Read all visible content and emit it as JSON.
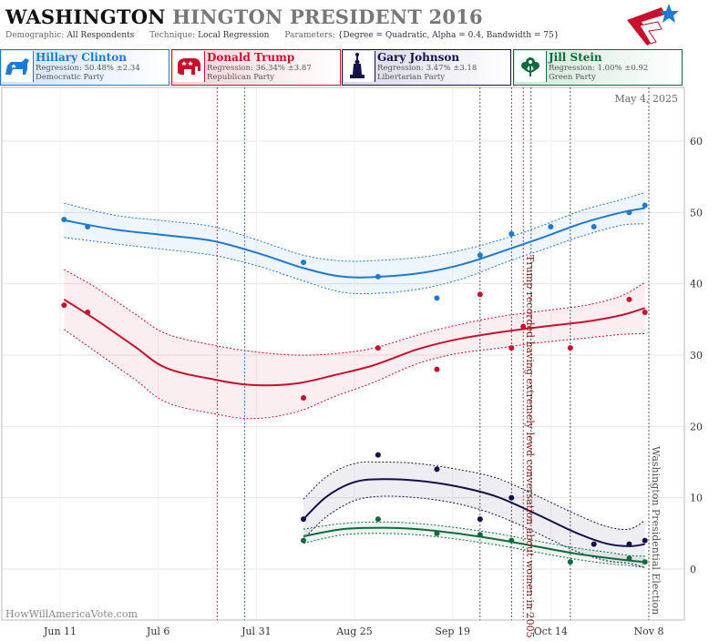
{
  "header": {
    "title_state": "WASHINGTON",
    "title_rest": "HINGTON PRESIDENT 2016",
    "demographic_label": "Demographic:",
    "demographic_value": "All Respondents",
    "technique_label": "Technique:",
    "technique_value": "Local Regression",
    "parameters_label": "Parameters:",
    "parameters_value": "{Degree = Quadratic, Alpha = 0.4, Bandwidth = 75}"
  },
  "candidates": [
    {
      "name": "Hillary Clinton",
      "regression": "Regression: 50.48% ±2.34",
      "party": "Democratic Party",
      "color": "#1f78d1",
      "icon": "donkey-icon"
    },
    {
      "name": "Donald Trump",
      "regression": "Regression: 36.34% ±3.87",
      "party": "Republican Party",
      "color": "#c8102e",
      "icon": "elephant-icon"
    },
    {
      "name": "Gary Johnson",
      "regression": "Regression: 3.47% ±3.18",
      "party": "Libertarian Party",
      "color": "#13104a",
      "icon": "statue-of-liberty-icon"
    },
    {
      "name": "Jill Stein",
      "regression": "Regression: 1.00% ±0.92",
      "party": "Green Party",
      "color": "#0e6a3c",
      "icon": "flower-icon"
    }
  ],
  "chart_data": {
    "type": "scatter",
    "date_label": "May 4, 2025",
    "watermark": "HowWillAmericaVote.com",
    "x_ticks": [
      {
        "date": "2016-06-11",
        "label": "Jun 11"
      },
      {
        "date": "2016-07-06",
        "label": "Jul 6"
      },
      {
        "date": "2016-07-31",
        "label": "Jul 31"
      },
      {
        "date": "2016-08-25",
        "label": "Aug 25"
      },
      {
        "date": "2016-09-19",
        "label": "Sep 19"
      },
      {
        "date": "2016-10-14",
        "label": "Oct 14"
      },
      {
        "date": "2016-11-08",
        "label": "Nov 8"
      }
    ],
    "y_ticks": [
      0,
      10,
      20,
      30,
      40,
      50,
      60
    ],
    "grid": true,
    "annotations": [
      {
        "date": "2016-10-07",
        "text": "Trump recorded having extremely lewd conversation about women in 2005",
        "color": "#8b1a1a"
      },
      {
        "date": "2016-11-08",
        "text": "Washington Presidential Election",
        "color": "#555555"
      }
    ],
    "event_lines": [
      {
        "date": "2016-07-21",
        "color": "#8b1a1a"
      },
      {
        "date": "2016-07-28",
        "color": "#1f5fa8"
      },
      {
        "date": "2016-09-26",
        "color": "#333333"
      },
      {
        "date": "2016-10-04",
        "color": "#333333"
      },
      {
        "date": "2016-10-07",
        "color": "#8b1a1a"
      },
      {
        "date": "2016-10-09",
        "color": "#333333"
      },
      {
        "date": "2016-10-19",
        "color": "#333333"
      },
      {
        "date": "2016-11-08",
        "color": "#333333"
      }
    ],
    "series": [
      {
        "name": "Hillary Clinton",
        "color": "#1f78d1",
        "points": [
          [
            "2016-06-12",
            49
          ],
          [
            "2016-06-18",
            48
          ],
          [
            "2016-08-12",
            43
          ],
          [
            "2016-08-31",
            41
          ],
          [
            "2016-09-15",
            38
          ],
          [
            "2016-09-26",
            44
          ],
          [
            "2016-10-04",
            47
          ],
          [
            "2016-10-14",
            48
          ],
          [
            "2016-10-25",
            48
          ],
          [
            "2016-11-03",
            50
          ],
          [
            "2016-11-07",
            51
          ]
        ],
        "trend": [
          [
            "2016-06-12",
            48.9
          ],
          [
            "2016-06-25",
            47.6
          ],
          [
            "2016-07-08",
            46.8
          ],
          [
            "2016-07-20",
            46.0
          ],
          [
            "2016-08-01",
            44.2
          ],
          [
            "2016-08-12",
            42.2
          ],
          [
            "2016-08-22",
            41.0
          ],
          [
            "2016-09-01",
            41.0
          ],
          [
            "2016-09-12",
            41.6
          ],
          [
            "2016-09-22",
            42.8
          ],
          [
            "2016-10-02",
            44.6
          ],
          [
            "2016-10-12",
            46.5
          ],
          [
            "2016-10-22",
            48.5
          ],
          [
            "2016-11-01",
            50.0
          ],
          [
            "2016-11-07",
            50.6
          ]
        ],
        "band_upper": [
          [
            "2016-06-12",
            51.3
          ],
          [
            "2016-06-25",
            49.6
          ],
          [
            "2016-07-08",
            48.8
          ],
          [
            "2016-07-20",
            48.0
          ],
          [
            "2016-08-01",
            46.0
          ],
          [
            "2016-08-12",
            44.0
          ],
          [
            "2016-08-22",
            43.2
          ],
          [
            "2016-09-01",
            43.3
          ],
          [
            "2016-09-12",
            43.8
          ],
          [
            "2016-09-22",
            44.8
          ],
          [
            "2016-10-02",
            46.3
          ],
          [
            "2016-10-12",
            48.2
          ],
          [
            "2016-10-22",
            50.3
          ],
          [
            "2016-11-01",
            51.8
          ],
          [
            "2016-11-07",
            52.8
          ]
        ],
        "band_lower": [
          [
            "2016-06-12",
            46.5
          ],
          [
            "2016-06-25",
            45.6
          ],
          [
            "2016-07-08",
            44.8
          ],
          [
            "2016-07-20",
            44.0
          ],
          [
            "2016-08-01",
            42.4
          ],
          [
            "2016-08-12",
            40.4
          ],
          [
            "2016-08-22",
            38.8
          ],
          [
            "2016-09-01",
            38.7
          ],
          [
            "2016-09-12",
            39.4
          ],
          [
            "2016-09-22",
            40.8
          ],
          [
            "2016-10-02",
            42.9
          ],
          [
            "2016-10-12",
            44.8
          ],
          [
            "2016-10-22",
            46.7
          ],
          [
            "2016-11-01",
            48.2
          ],
          [
            "2016-11-07",
            48.4
          ]
        ]
      },
      {
        "name": "Donald Trump",
        "color": "#c8102e",
        "points": [
          [
            "2016-06-12",
            37
          ],
          [
            "2016-06-18",
            36
          ],
          [
            "2016-08-12",
            24
          ],
          [
            "2016-08-31",
            31
          ],
          [
            "2016-09-15",
            28
          ],
          [
            "2016-09-26",
            38.5
          ],
          [
            "2016-10-04",
            31
          ],
          [
            "2016-10-07",
            34
          ],
          [
            "2016-10-19",
            31
          ],
          [
            "2016-11-03",
            37.8
          ],
          [
            "2016-11-07",
            36
          ]
        ],
        "trend": [
          [
            "2016-06-12",
            37.8
          ],
          [
            "2016-06-20",
            35.0
          ],
          [
            "2016-06-30",
            31.2
          ],
          [
            "2016-07-08",
            28.2
          ],
          [
            "2016-07-20",
            26.6
          ],
          [
            "2016-07-30",
            25.8
          ],
          [
            "2016-08-10",
            26.0
          ],
          [
            "2016-08-20",
            27.2
          ],
          [
            "2016-08-30",
            28.6
          ],
          [
            "2016-09-10",
            30.8
          ],
          [
            "2016-09-20",
            32.2
          ],
          [
            "2016-10-01",
            33.2
          ],
          [
            "2016-10-12",
            34.0
          ],
          [
            "2016-10-23",
            34.7
          ],
          [
            "2016-11-01",
            35.6
          ],
          [
            "2016-11-07",
            36.6
          ]
        ],
        "band_upper": [
          [
            "2016-06-12",
            42.0
          ],
          [
            "2016-06-20",
            39.5
          ],
          [
            "2016-06-30",
            35.8
          ],
          [
            "2016-07-08",
            33.0
          ],
          [
            "2016-07-20",
            31.4
          ],
          [
            "2016-07-30",
            30.5
          ],
          [
            "2016-08-10",
            30.0
          ],
          [
            "2016-08-20",
            30.2
          ],
          [
            "2016-08-30",
            31.0
          ],
          [
            "2016-09-10",
            32.8
          ],
          [
            "2016-09-20",
            34.2
          ],
          [
            "2016-10-01",
            35.4
          ],
          [
            "2016-10-12",
            36.2
          ],
          [
            "2016-10-23",
            37.0
          ],
          [
            "2016-11-01",
            38.3
          ],
          [
            "2016-11-07",
            40.2
          ]
        ],
        "band_lower": [
          [
            "2016-06-12",
            33.6
          ],
          [
            "2016-06-20",
            30.5
          ],
          [
            "2016-06-30",
            26.6
          ],
          [
            "2016-07-08",
            23.4
          ],
          [
            "2016-07-20",
            21.8
          ],
          [
            "2016-07-30",
            21.1
          ],
          [
            "2016-08-10",
            22.0
          ],
          [
            "2016-08-20",
            24.2
          ],
          [
            "2016-08-30",
            26.2
          ],
          [
            "2016-09-10",
            28.8
          ],
          [
            "2016-09-20",
            30.2
          ],
          [
            "2016-10-01",
            31.0
          ],
          [
            "2016-10-12",
            31.8
          ],
          [
            "2016-10-23",
            32.4
          ],
          [
            "2016-11-01",
            32.9
          ],
          [
            "2016-11-07",
            33.0
          ]
        ]
      },
      {
        "name": "Gary Johnson",
        "color": "#13104a",
        "points": [
          [
            "2016-08-12",
            7
          ],
          [
            "2016-08-31",
            16
          ],
          [
            "2016-09-15",
            14
          ],
          [
            "2016-09-26",
            7
          ],
          [
            "2016-10-04",
            10
          ],
          [
            "2016-10-25",
            3.5
          ],
          [
            "2016-11-03",
            3.5
          ],
          [
            "2016-11-07",
            4
          ]
        ],
        "trend": [
          [
            "2016-08-12",
            7.0
          ],
          [
            "2016-08-18",
            10.2
          ],
          [
            "2016-08-25",
            12.2
          ],
          [
            "2016-09-01",
            12.6
          ],
          [
            "2016-09-10",
            12.4
          ],
          [
            "2016-09-20",
            11.6
          ],
          [
            "2016-09-30",
            10.2
          ],
          [
            "2016-10-10",
            7.8
          ],
          [
            "2016-10-20",
            5.2
          ],
          [
            "2016-10-28",
            3.6
          ],
          [
            "2016-11-03",
            3.2
          ],
          [
            "2016-11-07",
            3.5
          ]
        ],
        "band_upper": [
          [
            "2016-08-12",
            9.8
          ],
          [
            "2016-08-18",
            13.0
          ],
          [
            "2016-08-25",
            14.8
          ],
          [
            "2016-09-01",
            15.0
          ],
          [
            "2016-09-10",
            14.8
          ],
          [
            "2016-09-20",
            14.0
          ],
          [
            "2016-09-30",
            12.8
          ],
          [
            "2016-10-10",
            10.4
          ],
          [
            "2016-10-20",
            7.8
          ],
          [
            "2016-10-28",
            6.0
          ],
          [
            "2016-11-03",
            5.6
          ],
          [
            "2016-11-07",
            6.8
          ]
        ],
        "band_lower": [
          [
            "2016-08-12",
            4.2
          ],
          [
            "2016-08-18",
            7.4
          ],
          [
            "2016-08-25",
            9.6
          ],
          [
            "2016-09-01",
            10.2
          ],
          [
            "2016-09-10",
            10.0
          ],
          [
            "2016-09-20",
            9.2
          ],
          [
            "2016-09-30",
            7.6
          ],
          [
            "2016-10-10",
            5.2
          ],
          [
            "2016-10-20",
            2.6
          ],
          [
            "2016-10-28",
            1.2
          ],
          [
            "2016-11-03",
            0.8
          ],
          [
            "2016-11-07",
            0.2
          ]
        ]
      },
      {
        "name": "Jill Stein",
        "color": "#0e6a3c",
        "points": [
          [
            "2016-08-12",
            4
          ],
          [
            "2016-08-31",
            7
          ],
          [
            "2016-09-15",
            5
          ],
          [
            "2016-09-26",
            4.8
          ],
          [
            "2016-10-04",
            4
          ],
          [
            "2016-10-19",
            1
          ],
          [
            "2016-11-03",
            1.5
          ],
          [
            "2016-11-07",
            1
          ]
        ],
        "trend": [
          [
            "2016-08-12",
            4.6
          ],
          [
            "2016-08-22",
            5.6
          ],
          [
            "2016-09-01",
            5.8
          ],
          [
            "2016-09-10",
            5.6
          ],
          [
            "2016-09-20",
            5.0
          ],
          [
            "2016-09-30",
            4.2
          ],
          [
            "2016-10-10",
            3.2
          ],
          [
            "2016-10-20",
            2.2
          ],
          [
            "2016-10-28",
            1.6
          ],
          [
            "2016-11-03",
            1.2
          ],
          [
            "2016-11-07",
            1.0
          ]
        ],
        "band_upper": [
          [
            "2016-08-12",
            5.6
          ],
          [
            "2016-08-22",
            6.4
          ],
          [
            "2016-09-01",
            6.6
          ],
          [
            "2016-09-10",
            6.4
          ],
          [
            "2016-09-20",
            5.8
          ],
          [
            "2016-09-30",
            5.0
          ],
          [
            "2016-10-10",
            4.0
          ],
          [
            "2016-10-20",
            3.0
          ],
          [
            "2016-10-28",
            2.4
          ],
          [
            "2016-11-03",
            1.9
          ],
          [
            "2016-11-07",
            1.8
          ]
        ],
        "band_lower": [
          [
            "2016-08-12",
            3.6
          ],
          [
            "2016-08-22",
            4.8
          ],
          [
            "2016-09-01",
            5.0
          ],
          [
            "2016-09-10",
            4.8
          ],
          [
            "2016-09-20",
            4.2
          ],
          [
            "2016-09-30",
            3.4
          ],
          [
            "2016-10-10",
            2.4
          ],
          [
            "2016-10-20",
            1.4
          ],
          [
            "2016-10-28",
            0.8
          ],
          [
            "2016-11-03",
            0.5
          ],
          [
            "2016-11-07",
            0.2
          ]
        ]
      }
    ]
  }
}
